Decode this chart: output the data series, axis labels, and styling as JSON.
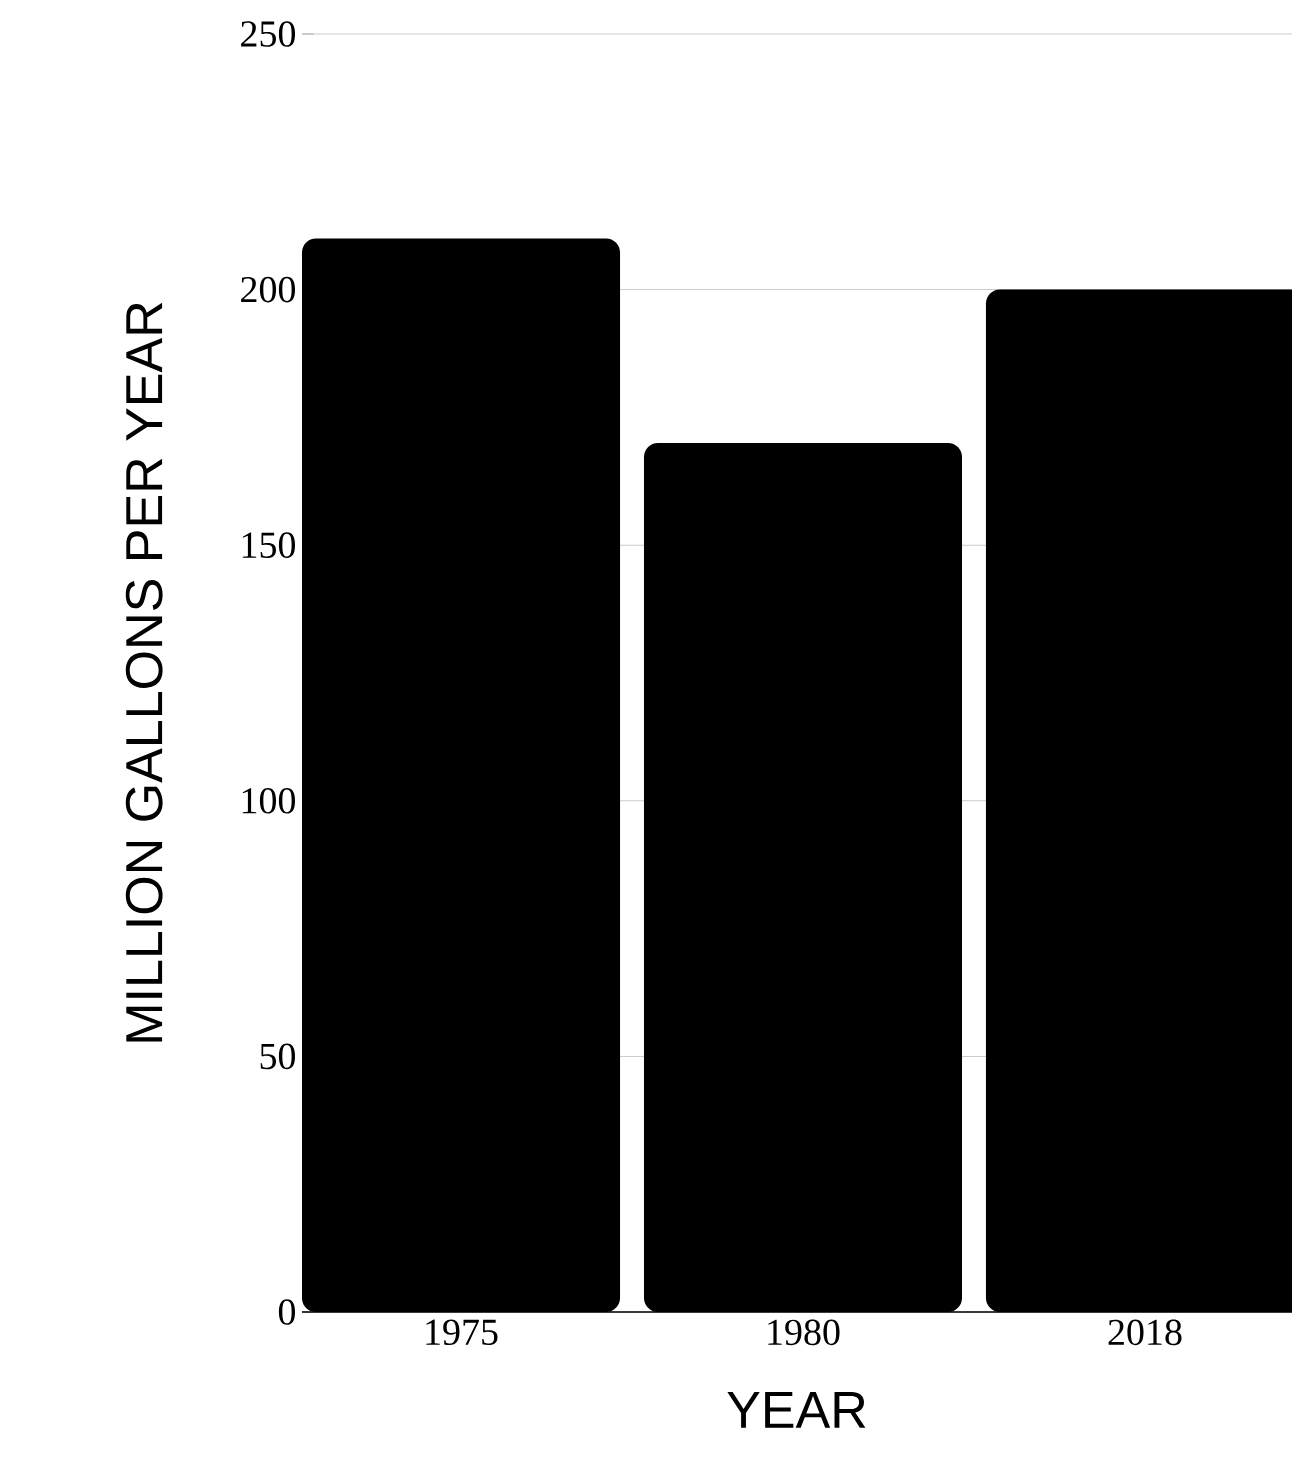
{
  "chart_data": {
    "type": "bar",
    "xlabel": "YEAR",
    "ylabel": "MILLION GALLONS PER YEAR",
    "categories": [
      "1975",
      "1980",
      "2018"
    ],
    "values": [
      210,
      170,
      200
    ],
    "color": "#000000",
    "ylim": [
      0,
      250
    ],
    "yticks": [
      0,
      50,
      100,
      150,
      200,
      250
    ],
    "grid": "y"
  }
}
